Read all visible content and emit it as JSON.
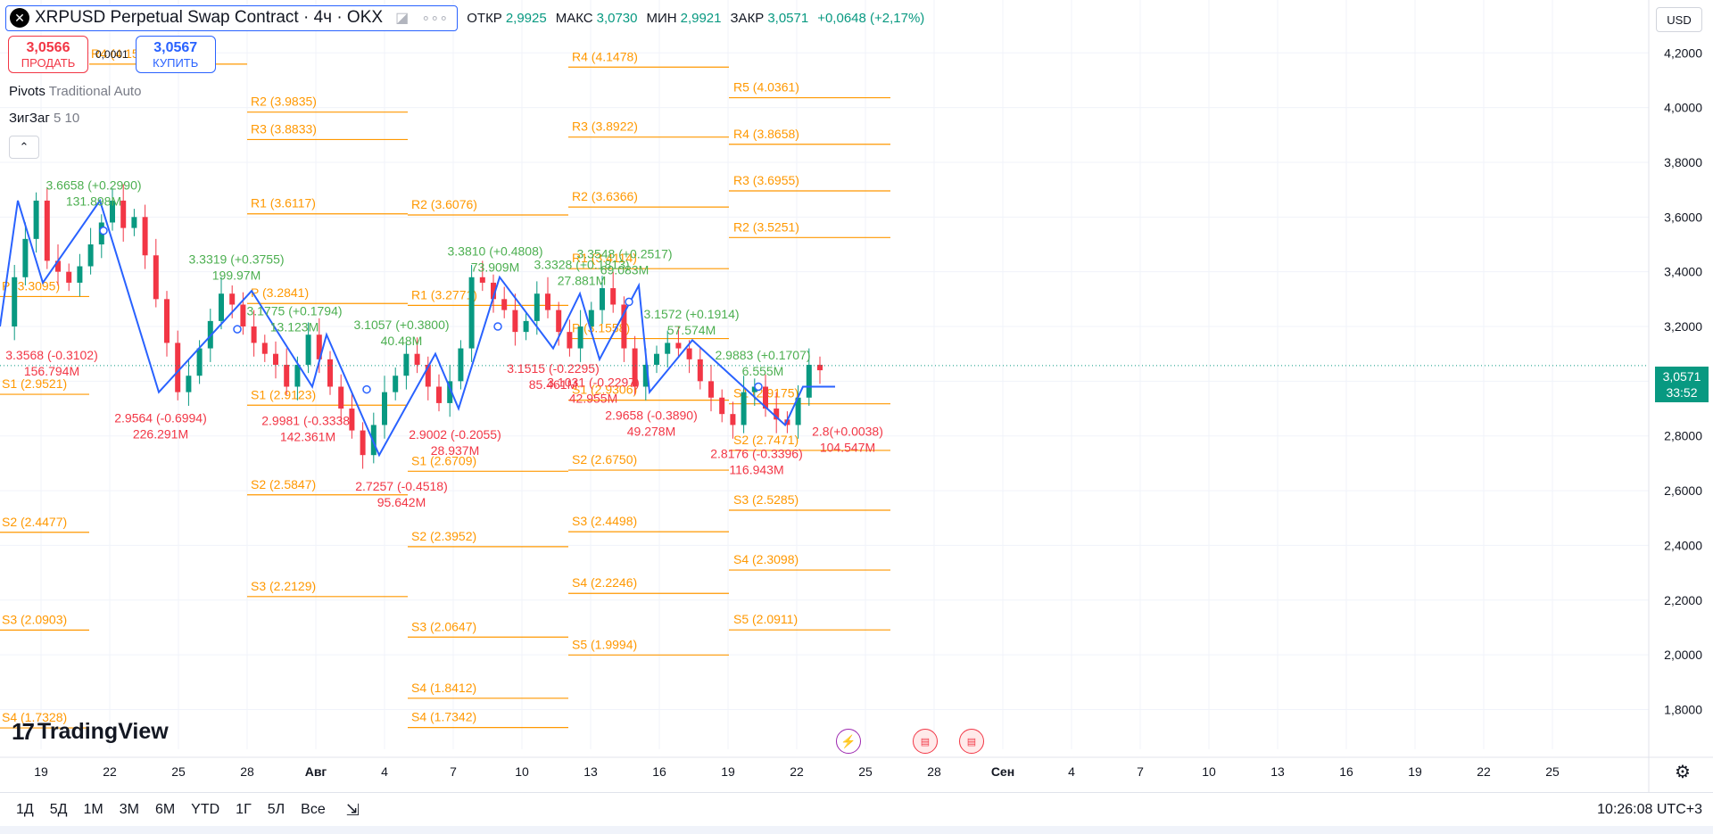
{
  "header": {
    "symbol_title": "XRPUSD Perpetual Swap Contract · 4ч · OKX",
    "more_icon": "ellipsis-icon",
    "ohlc": [
      {
        "label": "ОТКР",
        "value": "2,9925"
      },
      {
        "label": "МАКС",
        "value": "3,0730"
      },
      {
        "label": "МИН",
        "value": "2,9921"
      },
      {
        "label": "ЗАКР",
        "value": "3,0571"
      }
    ],
    "change": "+0,0648 (+2,17%)"
  },
  "trade": {
    "sell_price": "3,0566",
    "sell_label": "ПРОДАТЬ",
    "spread": "0,0001",
    "buy_price": "3,0567",
    "buy_label": "КУПИТЬ"
  },
  "indicators": {
    "pivots_name": "Pivots",
    "pivots_params": "Traditional Auto",
    "zigzag_name": "ЗигЗаг",
    "zigzag_params": "5 10"
  },
  "currency": "USD",
  "last_price": {
    "value": "3,0571",
    "countdown": "33:52"
  },
  "brand": "TradingView",
  "timeframes": [
    "1Д",
    "5Д",
    "1М",
    "3М",
    "6М",
    "YTD",
    "1Г",
    "5Л",
    "Все"
  ],
  "clock": "10:26:08 UTC+3",
  "chart_data": {
    "type": "candlestick",
    "y_ticks": [
      "4,2000",
      "4,0000",
      "3,8000",
      "3,6000",
      "3,4000",
      "3,2000",
      "3,0000",
      "2,8000",
      "2,6000",
      "2,4000",
      "2,2000",
      "2,0000",
      "1,8000"
    ],
    "ylim": [
      1.72,
      4.24
    ],
    "x_ticks": [
      "19",
      "22",
      "25",
      "28",
      "Авг",
      "4",
      "7",
      "10",
      "13",
      "16",
      "19",
      "22",
      "25",
      "28",
      "Сен",
      "4",
      "7",
      "10",
      "13",
      "16",
      "19",
      "22",
      "25"
    ],
    "last_close": 3.0571,
    "close_series": [
      3.2,
      3.38,
      3.52,
      3.66,
      3.44,
      3.4,
      3.36,
      3.42,
      3.5,
      3.58,
      3.66,
      3.56,
      3.6,
      3.46,
      3.3,
      3.14,
      2.96,
      3.02,
      3.12,
      3.22,
      3.32,
      3.28,
      3.2,
      3.14,
      3.1,
      3.06,
      2.98,
      3.06,
      3.17,
      3.08,
      2.98,
      2.9,
      2.82,
      2.73,
      2.84,
      2.96,
      3.02,
      3.1,
      3.06,
      2.98,
      2.92,
      3.0,
      3.12,
      3.38,
      3.36,
      3.3,
      3.26,
      3.18,
      3.22,
      3.32,
      3.26,
      3.18,
      3.12,
      3.2,
      3.26,
      3.34,
      3.28,
      3.12,
      2.98,
      3.06,
      3.1,
      3.14,
      3.12,
      3.08,
      3.0,
      2.94,
      2.88,
      2.84,
      2.96,
      2.98,
      2.9,
      2.86,
      2.84,
      2.94,
      3.06,
      3.04
    ],
    "pivot_levels": [
      {
        "label": "R4 (4.1590)",
        "value": 4.159
      },
      {
        "label": "R2 (3.9835)",
        "value": 3.9835
      },
      {
        "label": "R3 (3.8833)",
        "value": 3.8833
      },
      {
        "label": "R1 (3.6117)",
        "value": 3.6117
      },
      {
        "label": "R2 (3.6076)",
        "value": 3.6076
      },
      {
        "label": "P (3.3095)",
        "value": 3.3095
      },
      {
        "label": "P (3.2841)",
        "value": 3.2841
      },
      {
        "label": "R1 (3.2771)",
        "value": 3.2771
      },
      {
        "label": "S1 (2.9521)",
        "value": 2.9521
      },
      {
        "label": "S1 (2.9123)",
        "value": 2.9123
      },
      {
        "label": "S1 (2.6709)",
        "value": 2.6709
      },
      {
        "label": "S2 (2.5847)",
        "value": 2.5847
      },
      {
        "label": "S2 (2.4477)",
        "value": 2.4477
      },
      {
        "label": "S2 (2.3952)",
        "value": 2.3952
      },
      {
        "label": "S3 (2.2129)",
        "value": 2.2129
      },
      {
        "label": "S3 (2.0903)",
        "value": 2.0903
      },
      {
        "label": "S3 (2.0647)",
        "value": 2.0647
      },
      {
        "label": "S4 (1.8412)",
        "value": 1.8412
      },
      {
        "label": "S4 (1.7328)",
        "value": 1.7328
      },
      {
        "label": "S4 (1.7342)",
        "value": 1.7342
      },
      {
        "label": "R4 (4.1478)",
        "value": 4.1478
      },
      {
        "label": "R3 (3.8922)",
        "value": 3.8922
      },
      {
        "label": "R2 (3.6366)",
        "value": 3.6366
      },
      {
        "label": "R1 (3.4114)",
        "value": 3.4114
      },
      {
        "label": "P (3.1558)",
        "value": 3.1558
      },
      {
        "label": "S1 (2.9306)",
        "value": 2.9306
      },
      {
        "label": "S2 (2.6750)",
        "value": 2.675
      },
      {
        "label": "S3 (2.4498)",
        "value": 2.4498
      },
      {
        "label": "S4 (2.2246)",
        "value": 2.2246
      },
      {
        "label": "S5 (1.9994)",
        "value": 1.9994
      },
      {
        "label": "R5 (4.0361)",
        "value": 4.0361
      },
      {
        "label": "R4 (3.8658)",
        "value": 3.8658
      },
      {
        "label": "R3 (3.6955)",
        "value": 3.6955
      },
      {
        "label": "R2 (3.5251)",
        "value": 3.5251
      },
      {
        "label": "S1 (2.9175)",
        "value": 2.9175
      },
      {
        "label": "S2 (2.7471)",
        "value": 2.7471
      },
      {
        "label": "S3 (2.5285)",
        "value": 2.5285
      },
      {
        "label": "S4 (2.3098)",
        "value": 2.3098
      },
      {
        "label": "S5 (2.0911)",
        "value": 2.0911
      }
    ],
    "zigzag_labels": [
      {
        "line1": "3.6658 (+0.2990)",
        "line2": "131.898M",
        "color": "green"
      },
      {
        "line1": "3.3319 (+0.3755)",
        "line2": "199.97M",
        "color": "green"
      },
      {
        "line1": "3.1775 (+0.1794)",
        "line2": "13.123M",
        "color": "green"
      },
      {
        "line1": "3.1057 (+0.3800)",
        "line2": "40.48M",
        "color": "green"
      },
      {
        "line1": "3.3810 (+0.4808)",
        "line2": "73.909M",
        "color": "green"
      },
      {
        "line1": "3.3328 (+0.1813)",
        "line2": "27.881M",
        "color": "green"
      },
      {
        "line1": "3.3548 (+0.2517)",
        "line2": "69.083M",
        "color": "green"
      },
      {
        "line1": "3.1572 (+0.1914)",
        "line2": "57.574M",
        "color": "green"
      },
      {
        "line1": "2.9883 (+0.1707)",
        "line2": "6.555M",
        "color": "green"
      },
      {
        "line1": "3.3568 (-0.3102)",
        "line2": "156.794M",
        "color": "red"
      },
      {
        "line1": "2.9564 (-0.6994)",
        "line2": "226.291M",
        "color": "red"
      },
      {
        "line1": "2.9981 (-0.3338)",
        "line2": "142.361M",
        "color": "red"
      },
      {
        "line1": "2.7257 (-0.4518)",
        "line2": "95.642M",
        "color": "red"
      },
      {
        "line1": "2.9002 (-0.2055)",
        "line2": "28.937M",
        "color": "red"
      },
      {
        "line1": "3.1515 (-0.2295)",
        "line2": "85.461M",
        "color": "red"
      },
      {
        "line1": "3.1031 (-0.2297)",
        "line2": "42.955M",
        "color": "red"
      },
      {
        "line1": "2.9658 (-0.3890)",
        "line2": "49.278M",
        "color": "red"
      },
      {
        "line1": "2.8176 (-0.3396)",
        "line2": "116.943M",
        "color": "red"
      },
      {
        "line1": "2.8(+0.0038)",
        "line2": "104.547M",
        "color": "red"
      }
    ],
    "colors": {
      "up": "#089981",
      "down": "#f23645",
      "pivot": "#ff9800",
      "zigzag": "#2962ff",
      "label_up": "#4caf50",
      "label_down": "#f23645"
    }
  }
}
